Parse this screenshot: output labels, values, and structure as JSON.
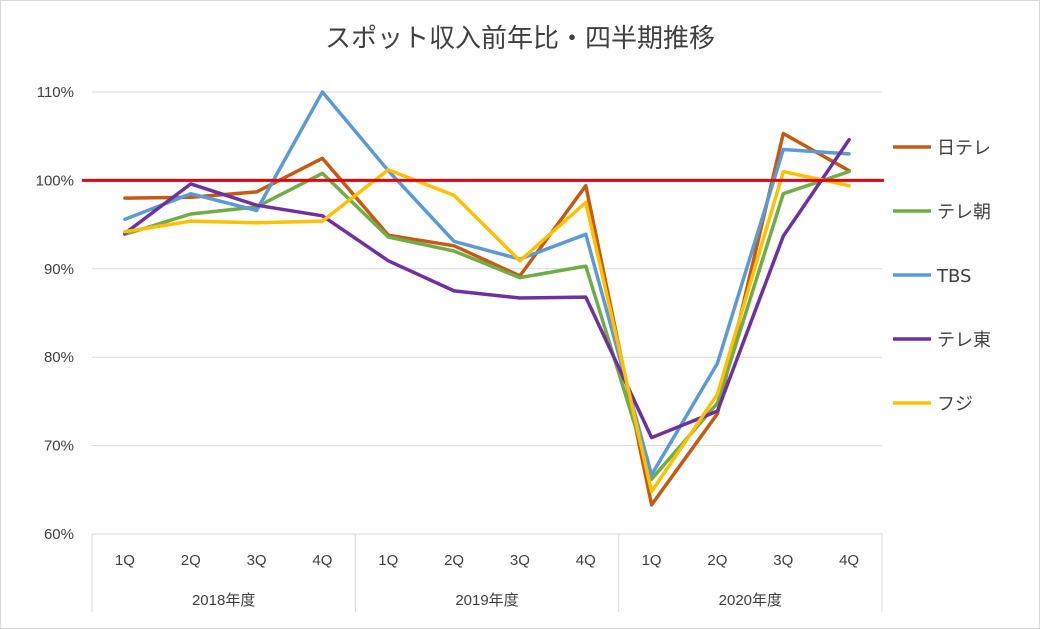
{
  "chart_data": {
    "type": "line",
    "title": "スポット収入前年比・四半期推移",
    "categories": [
      "1Q",
      "2Q",
      "3Q",
      "4Q",
      "1Q",
      "2Q",
      "3Q",
      "4Q",
      "1Q",
      "2Q",
      "3Q",
      "4Q"
    ],
    "groups": [
      {
        "label": "2018年度",
        "span": 4
      },
      {
        "label": "2019年度",
        "span": 4
      },
      {
        "label": "2020年度",
        "span": 4
      }
    ],
    "ylim": [
      60,
      110
    ],
    "yticks": [
      "60%",
      "70%",
      "80%",
      "90%",
      "100%",
      "110%"
    ],
    "reference_line": {
      "value": 100,
      "color": "#e60012"
    },
    "legend_position": "right",
    "series": [
      {
        "name": "日テレ",
        "color": "#c55a11",
        "values": [
          98.0,
          98.1,
          98.7,
          102.5,
          93.8,
          92.6,
          89.2,
          99.4,
          63.3,
          73.6,
          105.3,
          101.1
        ]
      },
      {
        "name": "テレ朝",
        "color": "#70ad47",
        "values": [
          93.9,
          96.2,
          97.0,
          100.8,
          93.6,
          92.0,
          89.0,
          90.3,
          66.2,
          74.8,
          98.5,
          101.0
        ]
      },
      {
        "name": "TBS",
        "color": "#5b9bd5",
        "values": [
          95.6,
          98.5,
          96.6,
          110.0,
          101.1,
          93.1,
          91.1,
          93.9,
          66.7,
          79.3,
          103.5,
          103.0
        ]
      },
      {
        "name": "テレ東",
        "color": "#7030a0",
        "values": [
          94.0,
          99.6,
          97.2,
          96.0,
          90.9,
          87.5,
          86.7,
          86.8,
          70.9,
          73.9,
          93.7,
          104.6
        ]
      },
      {
        "name": "フジ",
        "color": "#ffc000",
        "values": [
          94.2,
          95.4,
          95.2,
          95.4,
          101.2,
          98.3,
          90.9,
          97.5,
          64.8,
          75.8,
          101.0,
          99.4
        ]
      }
    ]
  }
}
